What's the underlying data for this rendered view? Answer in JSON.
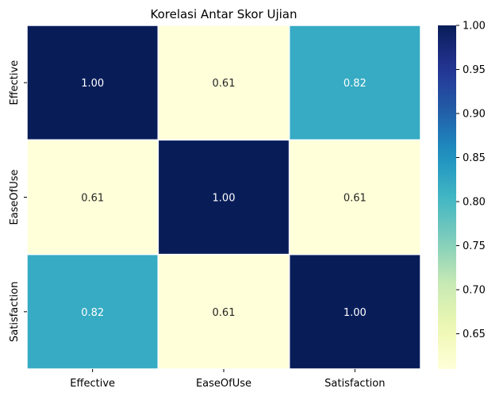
{
  "chart_data": {
    "type": "heatmap",
    "title": "Korelasi Antar Skor Ujian",
    "x_categories": [
      "Effective",
      "EaseOfUse",
      "Satisfaction"
    ],
    "y_categories": [
      "Effective",
      "EaseOfUse",
      "Satisfaction"
    ],
    "values": [
      [
        1.0,
        0.61,
        0.82
      ],
      [
        0.61,
        1.0,
        0.61
      ],
      [
        0.82,
        0.61,
        1.0
      ]
    ],
    "annotations": [
      [
        "1.00",
        "0.61",
        "0.82"
      ],
      [
        "0.61",
        "1.00",
        "0.61"
      ],
      [
        "0.82",
        "0.61",
        "1.00"
      ]
    ],
    "colormap": "YlGnBu",
    "colorbar": {
      "range": [
        0.61,
        1.0
      ],
      "ticks": [
        "0.65",
        "0.70",
        "0.75",
        "0.80",
        "0.85",
        "0.90",
        "0.95",
        "1.00"
      ]
    },
    "cell_border_color": "#ffffff"
  }
}
